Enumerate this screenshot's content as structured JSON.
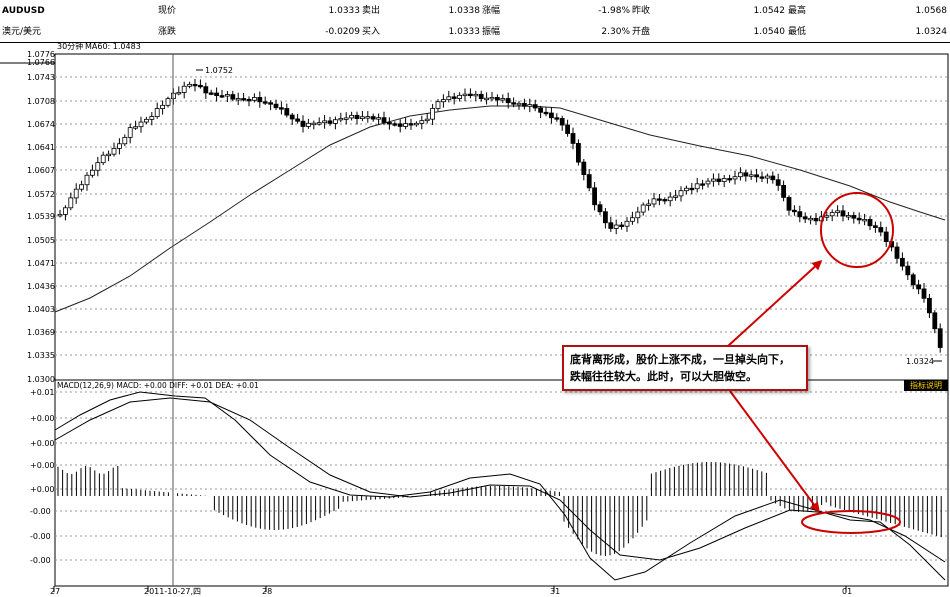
{
  "quote": {
    "symbol": "AUDUSD",
    "name": "澳元/美元",
    "fields": [
      {
        "label": "现价",
        "value": "1.0333"
      },
      {
        "label": "卖出",
        "value": "1.0338"
      },
      {
        "label": "涨幅",
        "value": "-1.98%"
      },
      {
        "label": "昨收",
        "value": "1.0542"
      },
      {
        "label": "最高",
        "value": "1.0568"
      },
      {
        "label": "涨跌",
        "value": "-0.0209"
      },
      {
        "label": "买入",
        "value": "1.0333"
      },
      {
        "label": "振幅",
        "value": "2.30%"
      },
      {
        "label": "开盘",
        "value": "1.0540"
      },
      {
        "label": "最低",
        "value": "1.0324"
      }
    ]
  },
  "chart": {
    "period_label": "30分钟",
    "ma_label": "MA60: 1.0483",
    "high_marker": "1.0752",
    "low_marker": "1.0324",
    "price_ticks": [
      "1.0776",
      "1.0766",
      "1.0743",
      "1.0708",
      "1.0674",
      "1.0641",
      "1.0607",
      "1.0572",
      "1.0539",
      "1.0505",
      "1.0471",
      "1.0436",
      "1.0403",
      "1.0369",
      "1.0335",
      "1.0300"
    ],
    "macd_label": "MACD(12,26,9) MACD: +0.00  DIFF: +0.01  DEA: +0.01",
    "macd_ticks": [
      "+0.01",
      "+0.00",
      "+0.00",
      "+0.00",
      "+0.00",
      "-0.00",
      "-0.00",
      "-0.00"
    ],
    "x_labels": [
      "27",
      "2011-10-27,四",
      "28",
      "31",
      "01"
    ],
    "indicator_button": "指标说明",
    "annotation": "底背离形成，股价上涨不成，一旦掉头向下，跌幅往往较大。此时，可以大胆做空。",
    "colors": {
      "annotation": "#cc0000",
      "hint_button_text": "#ffd200"
    }
  }
}
